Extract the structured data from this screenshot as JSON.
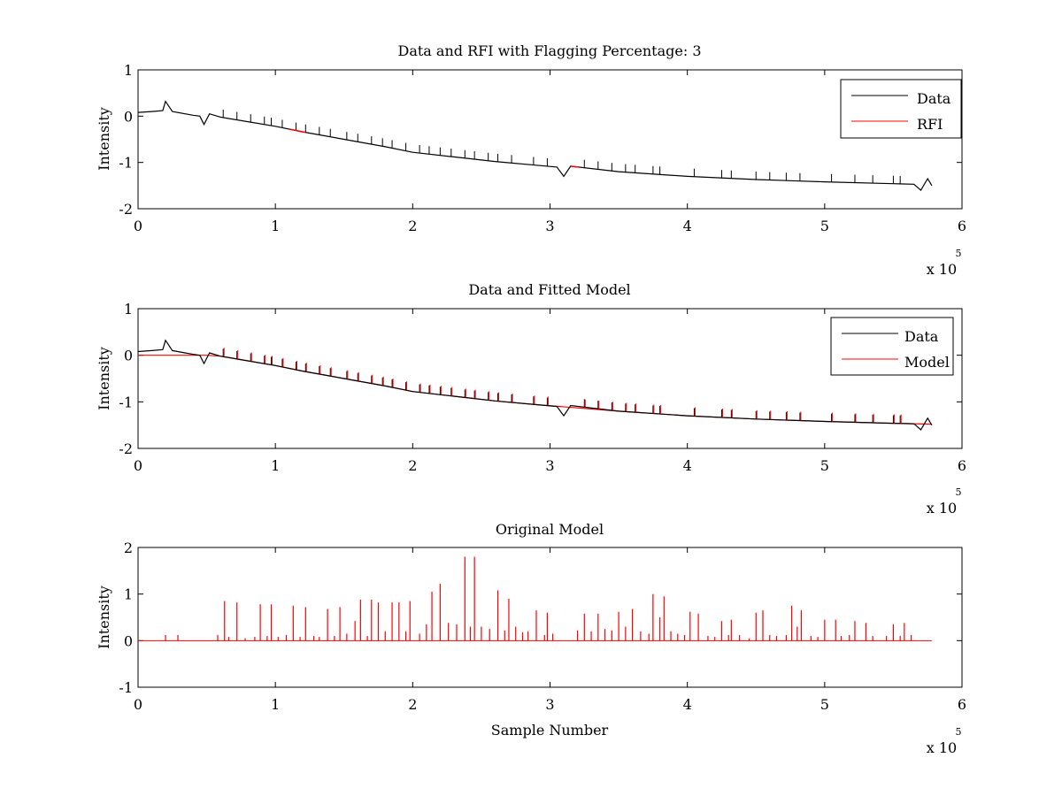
{
  "figure": {
    "background": "#ffffff",
    "data_color": "#000000",
    "rfi_color": "#ff0000",
    "model_color": "#ff0000"
  },
  "chart_data": [
    {
      "type": "line",
      "title": "Data and RFI with Flagging Percentage: 3",
      "xlabel": "",
      "ylabel": "Intensity",
      "xlim": [
        0,
        6
      ],
      "ylim": [
        -2,
        1
      ],
      "x_multiplier": "x 10",
      "x_multiplier_exp": "5",
      "xticks": [
        "0",
        "1",
        "2",
        "3",
        "4",
        "5",
        "6"
      ],
      "yticks": [
        "-2",
        "-1",
        "0",
        "1"
      ],
      "legend": {
        "position": "top-right",
        "entries": [
          "Data",
          "RFI"
        ]
      },
      "series": [
        {
          "name": "Data",
          "color": "#000000",
          "points": [
            [
              0,
              0.08
            ],
            [
              0.1,
              0.1
            ],
            [
              0.18,
              0.12
            ],
            [
              0.2,
              0.32
            ],
            [
              0.25,
              0.1
            ],
            [
              0.4,
              0.02
            ],
            [
              0.45,
              0.0
            ],
            [
              0.48,
              -0.18
            ],
            [
              0.52,
              0.05
            ],
            [
              0.6,
              -0.02
            ],
            [
              0.8,
              -0.12
            ],
            [
              1.0,
              -0.22
            ],
            [
              1.2,
              -0.34
            ],
            [
              1.5,
              -0.5
            ],
            [
              1.8,
              -0.66
            ],
            [
              2.0,
              -0.78
            ],
            [
              2.3,
              -0.88
            ],
            [
              2.6,
              -0.98
            ],
            [
              2.9,
              -1.06
            ],
            [
              3.05,
              -1.1
            ],
            [
              3.1,
              -1.3
            ],
            [
              3.15,
              -1.08
            ],
            [
              3.5,
              -1.2
            ],
            [
              4.0,
              -1.3
            ],
            [
              4.5,
              -1.37
            ],
            [
              5.0,
              -1.42
            ],
            [
              5.5,
              -1.46
            ],
            [
              5.65,
              -1.47
            ],
            [
              5.7,
              -1.6
            ],
            [
              5.75,
              -1.35
            ],
            [
              5.78,
              -1.5
            ]
          ],
          "spikes": [
            0.62,
            0.72,
            0.82,
            0.92,
            0.97,
            1.05,
            1.15,
            1.22,
            1.32,
            1.4,
            1.52,
            1.6,
            1.7,
            1.78,
            1.85,
            1.95,
            2.05,
            2.12,
            2.2,
            2.28,
            2.38,
            2.45,
            2.55,
            2.62,
            2.72,
            2.88,
            2.98,
            3.25,
            3.35,
            3.45,
            3.55,
            3.62,
            3.75,
            3.8,
            4.05,
            4.25,
            4.32,
            4.5,
            4.6,
            4.72,
            4.82,
            5.05,
            5.22,
            5.35,
            5.5,
            5.55
          ]
        },
        {
          "name": "RFI",
          "color": "#ff0000",
          "segments": [
            [
              1.1,
              1.22
            ],
            [
              3.15,
              3.22
            ]
          ]
        }
      ]
    },
    {
      "type": "line",
      "title": "Data and Fitted Model",
      "xlabel": "",
      "ylabel": "Intensity",
      "xlim": [
        0,
        6
      ],
      "ylim": [
        -2,
        1
      ],
      "x_multiplier": "x 10",
      "x_multiplier_exp": "5",
      "xticks": [
        "0",
        "1",
        "2",
        "3",
        "4",
        "5",
        "6"
      ],
      "yticks": [
        "-2",
        "-1",
        "0",
        "1"
      ],
      "legend": {
        "position": "top-right",
        "entries": [
          "Data",
          "Model"
        ]
      },
      "series": [
        {
          "name": "Data",
          "color": "#000000",
          "same_as": "Data"
        },
        {
          "name": "Model",
          "color": "#ff0000",
          "points": [
            [
              0,
              0.0
            ],
            [
              0.5,
              0.0
            ],
            [
              0.6,
              -0.02
            ],
            [
              0.8,
              -0.12
            ],
            [
              1.0,
              -0.22
            ],
            [
              1.2,
              -0.34
            ],
            [
              1.5,
              -0.5
            ],
            [
              1.8,
              -0.66
            ],
            [
              2.0,
              -0.78
            ],
            [
              2.3,
              -0.88
            ],
            [
              2.6,
              -0.98
            ],
            [
              2.9,
              -1.06
            ],
            [
              3.2,
              -1.13
            ],
            [
              3.5,
              -1.2
            ],
            [
              4.0,
              -1.3
            ],
            [
              4.5,
              -1.37
            ],
            [
              5.0,
              -1.42
            ],
            [
              5.5,
              -1.46
            ],
            [
              5.78,
              -1.48
            ]
          ]
        }
      ]
    },
    {
      "type": "line",
      "title": "Original Model",
      "xlabel": "Sample Number",
      "ylabel": "Intensity",
      "xlim": [
        0,
        6
      ],
      "ylim": [
        -1,
        2
      ],
      "x_multiplier": "x 10",
      "x_multiplier_exp": "5",
      "xticks": [
        "0",
        "1",
        "2",
        "3",
        "4",
        "5",
        "6"
      ],
      "yticks": [
        "-1",
        "0",
        "1",
        "2"
      ],
      "series": [
        {
          "name": "Model",
          "color": "#ff0000",
          "baseline": 0,
          "x_end": 5.78,
          "spikes": [
            [
              0.2,
              0.12
            ],
            [
              0.29,
              0.12
            ],
            [
              0.58,
              0.12
            ],
            [
              0.63,
              0.85
            ],
            [
              0.66,
              0.08
            ],
            [
              0.72,
              0.82
            ],
            [
              0.78,
              0.05
            ],
            [
              0.85,
              0.08
            ],
            [
              0.89,
              0.78
            ],
            [
              0.94,
              0.1
            ],
            [
              0.97,
              0.78
            ],
            [
              1.02,
              0.08
            ],
            [
              1.08,
              0.12
            ],
            [
              1.13,
              0.75
            ],
            [
              1.18,
              0.08
            ],
            [
              1.22,
              0.72
            ],
            [
              1.28,
              0.1
            ],
            [
              1.32,
              0.08
            ],
            [
              1.38,
              0.68
            ],
            [
              1.43,
              0.1
            ],
            [
              1.47,
              0.72
            ],
            [
              1.52,
              0.15
            ],
            [
              1.58,
              0.42
            ],
            [
              1.62,
              0.88
            ],
            [
              1.67,
              0.1
            ],
            [
              1.7,
              0.88
            ],
            [
              1.75,
              0.82
            ],
            [
              1.8,
              0.2
            ],
            [
              1.85,
              0.82
            ],
            [
              1.9,
              0.82
            ],
            [
              1.95,
              0.2
            ],
            [
              1.98,
              0.85
            ],
            [
              2.05,
              0.15
            ],
            [
              2.1,
              0.35
            ],
            [
              2.14,
              1.05
            ],
            [
              2.2,
              1.22
            ],
            [
              2.26,
              0.38
            ],
            [
              2.32,
              0.35
            ],
            [
              2.38,
              1.8
            ],
            [
              2.42,
              0.3
            ],
            [
              2.45,
              1.8
            ],
            [
              2.5,
              0.3
            ],
            [
              2.56,
              0.25
            ],
            [
              2.62,
              1.08
            ],
            [
              2.67,
              0.22
            ],
            [
              2.7,
              0.9
            ],
            [
              2.75,
              0.3
            ],
            [
              2.8,
              0.18
            ],
            [
              2.84,
              0.2
            ],
            [
              2.9,
              0.65
            ],
            [
              2.96,
              0.12
            ],
            [
              2.98,
              0.6
            ],
            [
              3.02,
              0.15
            ],
            [
              3.2,
              0.22
            ],
            [
              3.25,
              0.58
            ],
            [
              3.3,
              0.2
            ],
            [
              3.35,
              0.58
            ],
            [
              3.4,
              0.25
            ],
            [
              3.45,
              0.22
            ],
            [
              3.5,
              0.62
            ],
            [
              3.55,
              0.3
            ],
            [
              3.6,
              0.68
            ],
            [
              3.66,
              0.2
            ],
            [
              3.72,
              0.15
            ],
            [
              3.75,
              1.0
            ],
            [
              3.8,
              0.5
            ],
            [
              3.83,
              0.95
            ],
            [
              3.88,
              0.2
            ],
            [
              3.93,
              0.15
            ],
            [
              3.98,
              0.12
            ],
            [
              4.02,
              0.62
            ],
            [
              4.08,
              0.58
            ],
            [
              4.15,
              0.1
            ],
            [
              4.2,
              0.08
            ],
            [
              4.25,
              0.42
            ],
            [
              4.3,
              0.12
            ],
            [
              4.32,
              0.45
            ],
            [
              4.38,
              0.12
            ],
            [
              4.45,
              0.05
            ],
            [
              4.5,
              0.6
            ],
            [
              4.55,
              0.65
            ],
            [
              4.6,
              0.12
            ],
            [
              4.65,
              0.1
            ],
            [
              4.72,
              0.12
            ],
            [
              4.76,
              0.75
            ],
            [
              4.8,
              0.3
            ],
            [
              4.83,
              0.65
            ],
            [
              4.9,
              0.1
            ],
            [
              4.95,
              0.08
            ],
            [
              5.0,
              0.45
            ],
            [
              5.08,
              0.45
            ],
            [
              5.12,
              0.1
            ],
            [
              5.18,
              0.12
            ],
            [
              5.22,
              0.42
            ],
            [
              5.3,
              0.38
            ],
            [
              5.35,
              0.1
            ],
            [
              5.45,
              0.1
            ],
            [
              5.5,
              0.35
            ],
            [
              5.55,
              0.1
            ],
            [
              5.58,
              0.38
            ],
            [
              5.63,
              0.12
            ]
          ]
        }
      ]
    }
  ]
}
